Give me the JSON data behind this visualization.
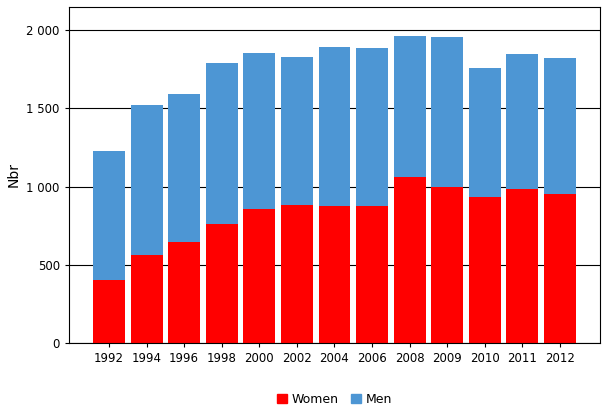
{
  "years": [
    1992,
    1994,
    1996,
    1998,
    2000,
    2002,
    2004,
    2006,
    2008,
    2009,
    2010,
    2011,
    2012
  ],
  "women": [
    400,
    565,
    645,
    760,
    855,
    880,
    875,
    875,
    1060,
    1000,
    935,
    985,
    950
  ],
  "men": [
    830,
    960,
    950,
    1030,
    1000,
    950,
    1020,
    1010,
    905,
    960,
    825,
    865,
    870
  ],
  "women_color": "#ff0000",
  "men_color": "#4d96d4",
  "ylabel": "Nbr",
  "ylim": [
    0,
    2150
  ],
  "ytick_vals": [
    0,
    500,
    1000,
    1500,
    2000
  ],
  "ytick_labels": [
    "0",
    "500",
    "1 000",
    "1 500",
    "2 000"
  ],
  "bar_width": 0.85,
  "legend_labels": [
    "Women",
    "Men"
  ],
  "background_color": "#ffffff",
  "grid_color": "#000000",
  "spine_color": "#000000",
  "tick_fontsize": 8.5,
  "ylabel_fontsize": 10
}
